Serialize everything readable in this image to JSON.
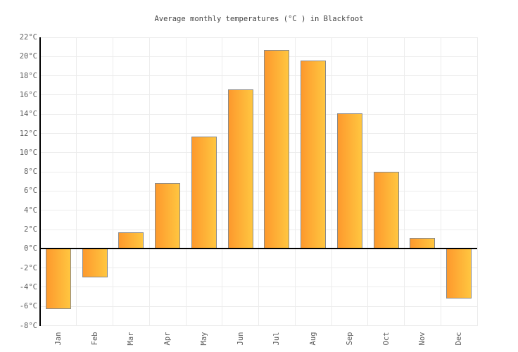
{
  "title": "Average monthly temperatures (°C ) in Blackfoot",
  "chart_data": {
    "type": "bar",
    "title": "Average monthly temperatures (°C ) in Blackfoot",
    "categories": [
      "Jan",
      "Feb",
      "Mar",
      "Apr",
      "May",
      "Jun",
      "Jul",
      "Aug",
      "Sep",
      "Oct",
      "Nov",
      "Dec"
    ],
    "values": [
      -6.3,
      -3,
      1.7,
      6.8,
      11.7,
      16.6,
      20.7,
      19.6,
      14.1,
      8,
      1.1,
      -5.2
    ],
    "xlabel": "",
    "ylabel": "",
    "ylim": [
      -8,
      22
    ],
    "ytick_step": 2,
    "yticks": [
      "22°C",
      "20°C",
      "18°C",
      "16°C",
      "14°C",
      "12°C",
      "10°C",
      "8°C",
      "6°C",
      "4°C",
      "2°C",
      "0°C",
      "-2°C",
      "-4°C",
      "-6°C",
      "-8°C"
    ],
    "grid": true,
    "legend": "none",
    "colors": {
      "bar_gradient_left": "#fd992d",
      "bar_gradient_right": "#ffc640",
      "bar_border": "#8a8a8a",
      "axis_line": "#000000",
      "grid_line": "#ececec",
      "tick_label": "#606060",
      "title_text": "#444444",
      "background": "#ffffff"
    }
  }
}
